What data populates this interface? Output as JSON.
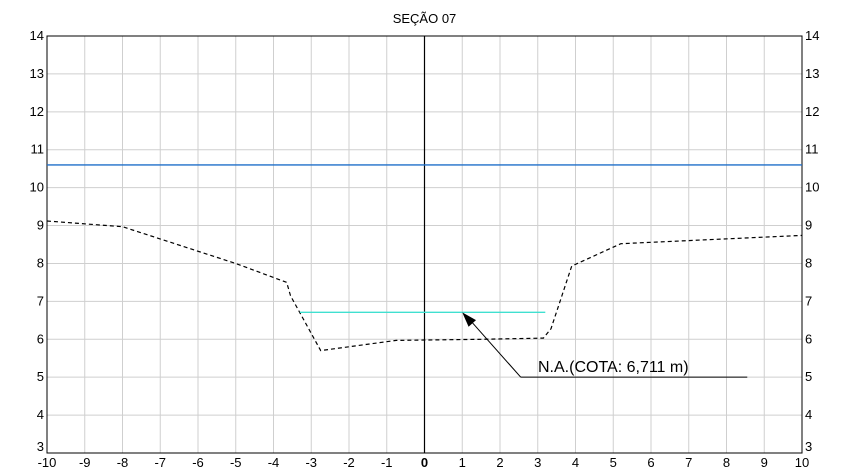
{
  "chart_data": {
    "type": "line",
    "title": "SEÇÃO 07",
    "xlabel": "",
    "ylabel": "",
    "xlim": [
      -10,
      10
    ],
    "ylim": [
      3,
      14
    ],
    "x_ticks": [
      -10,
      -9,
      -8,
      -7,
      -6,
      -5,
      -4,
      -3,
      -2,
      -1,
      0,
      1,
      2,
      3,
      4,
      5,
      6,
      7,
      8,
      9,
      10
    ],
    "y_ticks": [
      3,
      4,
      5,
      6,
      7,
      8,
      9,
      10,
      11,
      12,
      13,
      14
    ],
    "grid": true,
    "series": [
      {
        "style": "dashed",
        "color": "#000000",
        "x": [
          -10,
          -8,
          -5,
          -3.65,
          -3.55,
          -2.75,
          -0.75,
          1.5,
          3.15,
          3.35,
          3.9,
          5.2,
          10
        ],
        "y": [
          9.12,
          8.97,
          8.0,
          7.5,
          7.15,
          5.7,
          5.97,
          6.0,
          6.03,
          6.28,
          7.93,
          8.52,
          8.74
        ]
      },
      {
        "style": "solid",
        "color": "#1f6fc9",
        "x": [
          -10,
          10
        ],
        "y": [
          10.6,
          10.6
        ]
      },
      {
        "style": "solid",
        "color": "#40e0d0",
        "x": [
          -3.3,
          3.2
        ],
        "y": [
          6.711,
          6.711
        ]
      }
    ],
    "vertical_axis_line": {
      "x": 0,
      "color": "#000000"
    },
    "annotation": {
      "text": "N.A.(COTA: 6,711 m)",
      "arrow_tip": [
        1.0,
        6.711
      ],
      "arrow_tail": [
        2.55,
        5.0
      ],
      "underline_to_x": 8.55,
      "underline_y": 5.0
    }
  }
}
